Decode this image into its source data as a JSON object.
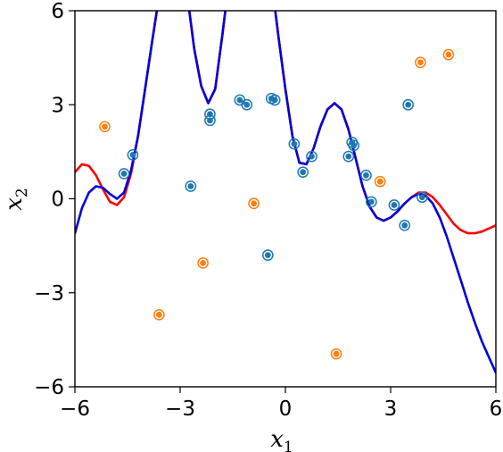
{
  "chart_data": {
    "type": "scatter",
    "xlim": [
      -6,
      6
    ],
    "ylim": [
      -6,
      6
    ],
    "xticks": [
      -6,
      -3,
      0,
      3,
      6
    ],
    "yticks": [
      -6,
      -3,
      0,
      3,
      6
    ],
    "xtick_labels": [
      "−6",
      "−3",
      "0",
      "3",
      "6"
    ],
    "ytick_labels": [
      "−6",
      "−3",
      "0",
      "3",
      "6"
    ],
    "xlabel": "x",
    "xlabel_sub": "1",
    "ylabel": "x",
    "ylabel_sub": "2",
    "grid": false,
    "colors": {
      "class_a": "#1f77b4",
      "class_b": "#ff7f0e",
      "curve_red": "#ff0000",
      "curve_blue": "#0000dd"
    },
    "series": [
      {
        "marker": "circle",
        "color": "#1f77b4",
        "points": [
          [
            -4.6,
            0.8
          ],
          [
            -4.35,
            1.4
          ],
          [
            -2.7,
            0.4
          ],
          [
            -2.15,
            2.7
          ],
          [
            -2.15,
            2.5
          ],
          [
            -1.3,
            3.15
          ],
          [
            -1.1,
            3.0
          ],
          [
            -0.5,
            -1.8
          ],
          [
            -0.4,
            3.2
          ],
          [
            -0.3,
            3.15
          ],
          [
            0.25,
            1.75
          ],
          [
            0.5,
            0.85
          ],
          [
            0.75,
            1.35
          ],
          [
            1.8,
            1.35
          ],
          [
            1.9,
            1.8
          ],
          [
            1.95,
            1.7
          ],
          [
            2.3,
            0.75
          ],
          [
            2.45,
            -0.1
          ],
          [
            3.1,
            -0.2
          ],
          [
            3.4,
            -0.85
          ],
          [
            3.5,
            3.0
          ],
          [
            3.9,
            0.05
          ]
        ]
      },
      {
        "marker": "circle",
        "color": "#ff7f0e",
        "points": [
          [
            -5.15,
            2.3
          ],
          [
            -3.6,
            -3.7
          ],
          [
            -2.35,
            -2.05
          ],
          [
            -0.9,
            -0.15
          ],
          [
            1.45,
            -4.95
          ],
          [
            2.7,
            0.55
          ],
          [
            3.85,
            4.35
          ],
          [
            4.65,
            4.6
          ]
        ]
      }
    ],
    "curves": [
      {
        "color": "#ff0000",
        "points": [
          [
            -6.0,
            0.85
          ],
          [
            -5.8,
            1.1
          ],
          [
            -5.6,
            1.05
          ],
          [
            -5.4,
            0.75
          ],
          [
            -5.2,
            0.3
          ],
          [
            -5.0,
            -0.1
          ],
          [
            -4.8,
            -0.2
          ],
          [
            -4.6,
            0.05
          ],
          [
            -4.4,
            0.8
          ],
          [
            -4.2,
            2.0
          ],
          [
            -4.0,
            3.5
          ],
          [
            -3.8,
            5.0
          ],
          [
            -3.65,
            6.1
          ],
          [
            -2.75,
            6.1
          ],
          [
            -2.6,
            4.8
          ],
          [
            -2.4,
            3.6
          ],
          [
            -2.2,
            3.05
          ],
          [
            -2.0,
            3.5
          ],
          [
            -1.8,
            5.2
          ],
          [
            -1.7,
            6.1
          ],
          [
            -0.3,
            6.1
          ],
          [
            -0.2,
            5.2
          ],
          [
            0.0,
            3.5
          ],
          [
            0.2,
            2.0
          ],
          [
            0.4,
            1.15
          ],
          [
            0.6,
            1.1
          ],
          [
            0.8,
            1.6
          ],
          [
            1.0,
            2.3
          ],
          [
            1.2,
            2.85
          ],
          [
            1.4,
            3.05
          ],
          [
            1.6,
            2.85
          ],
          [
            1.8,
            2.2
          ],
          [
            2.0,
            1.3
          ],
          [
            2.2,
            0.4
          ],
          [
            2.4,
            -0.25
          ],
          [
            2.6,
            -0.6
          ],
          [
            2.8,
            -0.7
          ],
          [
            3.0,
            -0.6
          ],
          [
            3.2,
            -0.4
          ],
          [
            3.4,
            -0.15
          ],
          [
            3.6,
            0.05
          ],
          [
            3.8,
            0.2
          ],
          [
            4.0,
            0.2
          ],
          [
            4.2,
            0.05
          ],
          [
            4.4,
            -0.2
          ],
          [
            4.6,
            -0.5
          ],
          [
            4.8,
            -0.8
          ],
          [
            5.0,
            -1.0
          ],
          [
            5.2,
            -1.1
          ],
          [
            5.4,
            -1.1
          ],
          [
            5.6,
            -1.05
          ],
          [
            5.8,
            -0.95
          ],
          [
            6.0,
            -0.85
          ]
        ]
      },
      {
        "color": "#0000dd",
        "points": [
          [
            -6.0,
            -1.1
          ],
          [
            -5.8,
            -0.3
          ],
          [
            -5.6,
            0.2
          ],
          [
            -5.4,
            0.4
          ],
          [
            -5.2,
            0.35
          ],
          [
            -5.0,
            0.15
          ],
          [
            -4.8,
            0.0
          ],
          [
            -4.6,
            0.2
          ],
          [
            -4.4,
            0.9
          ],
          [
            -4.2,
            2.0
          ],
          [
            -4.0,
            3.5
          ],
          [
            -3.8,
            5.0
          ],
          [
            -3.65,
            6.1
          ],
          [
            -2.75,
            6.1
          ],
          [
            -2.6,
            4.8
          ],
          [
            -2.4,
            3.6
          ],
          [
            -2.2,
            3.05
          ],
          [
            -2.0,
            3.5
          ],
          [
            -1.8,
            5.2
          ],
          [
            -1.7,
            6.1
          ],
          [
            -0.3,
            6.1
          ],
          [
            -0.2,
            5.2
          ],
          [
            0.0,
            3.5
          ],
          [
            0.2,
            2.0
          ],
          [
            0.4,
            1.15
          ],
          [
            0.6,
            1.1
          ],
          [
            0.8,
            1.6
          ],
          [
            1.0,
            2.3
          ],
          [
            1.2,
            2.85
          ],
          [
            1.4,
            3.05
          ],
          [
            1.6,
            2.85
          ],
          [
            1.8,
            2.2
          ],
          [
            2.0,
            1.3
          ],
          [
            2.2,
            0.4
          ],
          [
            2.4,
            -0.25
          ],
          [
            2.6,
            -0.6
          ],
          [
            2.8,
            -0.7
          ],
          [
            3.0,
            -0.6
          ],
          [
            3.2,
            -0.4
          ],
          [
            3.4,
            -0.15
          ],
          [
            3.6,
            0.05
          ],
          [
            3.8,
            0.15
          ],
          [
            4.0,
            0.1
          ],
          [
            4.2,
            -0.15
          ],
          [
            4.4,
            -0.6
          ],
          [
            4.6,
            -1.2
          ],
          [
            4.8,
            -1.9
          ],
          [
            5.0,
            -2.6
          ],
          [
            5.2,
            -3.3
          ],
          [
            5.4,
            -3.95
          ],
          [
            5.6,
            -4.55
          ],
          [
            5.8,
            -5.05
          ],
          [
            6.0,
            -5.55
          ]
        ]
      }
    ]
  }
}
